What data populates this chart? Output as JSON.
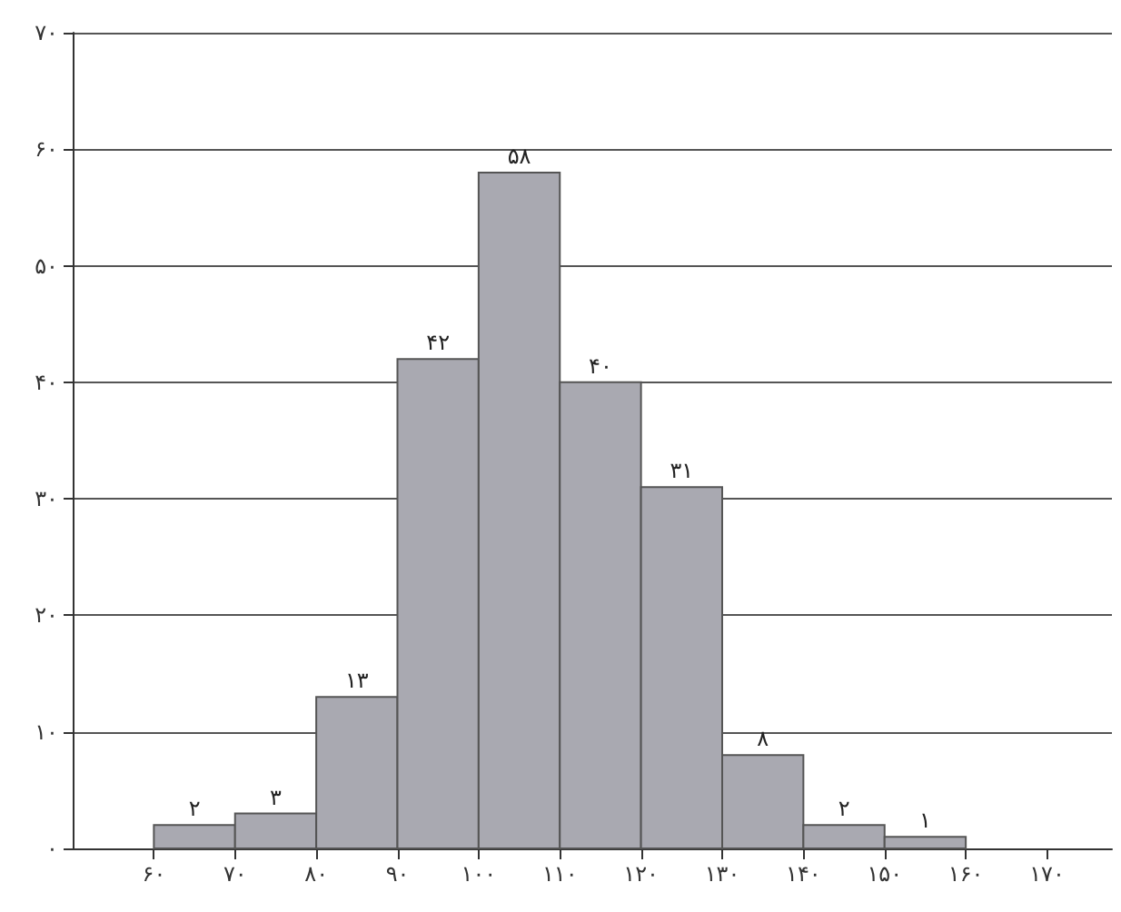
{
  "chart_data": {
    "type": "histogram",
    "bins": [
      60,
      70,
      80,
      90,
      100,
      110,
      120,
      130,
      140,
      150,
      160
    ],
    "values": [
      2,
      3,
      13,
      42,
      58,
      40,
      31,
      8,
      2,
      1
    ],
    "value_labels": [
      "۲",
      "۳",
      "۱۳",
      "۴۲",
      "۵۸",
      "۴۰",
      "۳۱",
      "۸",
      "۲",
      "۱"
    ],
    "color": "#a9a9b1",
    "xlim": [
      50,
      178
    ],
    "xticks": [
      {
        "value": 60,
        "label": "۶۰"
      },
      {
        "value": 70,
        "label": "۷۰"
      },
      {
        "value": 80,
        "label": "۸۰"
      },
      {
        "value": 90,
        "label": "۹۰"
      },
      {
        "value": 100,
        "label": "۱۰۰"
      },
      {
        "value": 110,
        "label": "۱۱۰"
      },
      {
        "value": 120,
        "label": "۱۲۰"
      },
      {
        "value": 130,
        "label": "۱۳۰"
      },
      {
        "value": 140,
        "label": "۱۴۰"
      },
      {
        "value": 150,
        "label": "۱۵۰"
      },
      {
        "value": 160,
        "label": "۱۶۰"
      },
      {
        "value": 170,
        "label": "۱۷۰"
      }
    ],
    "ylim": [
      0,
      70
    ],
    "yticks": [
      {
        "value": 0,
        "label": "۰"
      },
      {
        "value": 10,
        "label": "۱۰"
      },
      {
        "value": 20,
        "label": "۲۰"
      },
      {
        "value": 30,
        "label": "۳۰"
      },
      {
        "value": 40,
        "label": "۴۰"
      },
      {
        "value": 50,
        "label": "۵۰"
      },
      {
        "value": 60,
        "label": "۶۰"
      },
      {
        "value": 70,
        "label": "۷۰"
      }
    ],
    "grid": "y"
  }
}
